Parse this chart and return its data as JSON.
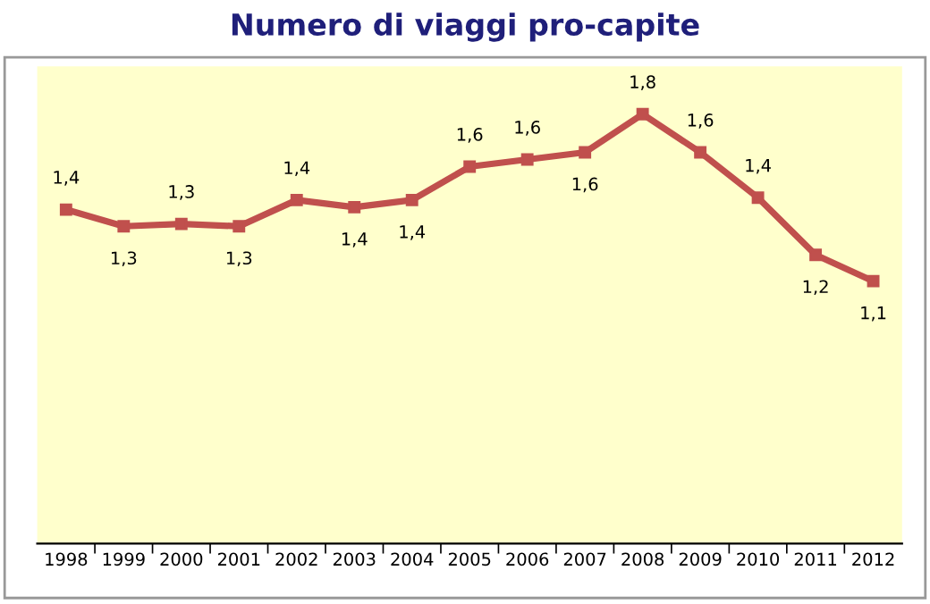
{
  "chart_data": {
    "type": "line",
    "title": "Numero di viaggi pro-capite",
    "categories": [
      "1998",
      "1999",
      "2000",
      "2001",
      "2002",
      "2003",
      "2004",
      "2005",
      "2006",
      "2007",
      "2008",
      "2009",
      "2010",
      "2011",
      "2012"
    ],
    "values": [
      1.4,
      1.33,
      1.34,
      1.33,
      1.44,
      1.41,
      1.44,
      1.58,
      1.61,
      1.64,
      1.8,
      1.64,
      1.45,
      1.21,
      1.1
    ],
    "value_labels": [
      "1,4",
      "1,3",
      "1,3",
      "1,3",
      "1,4",
      "1,4",
      "1,4",
      "1,6",
      "1,6",
      "1,6",
      "1,8",
      "1,6",
      "1,4",
      "1,2",
      "1,1"
    ],
    "color": "#c0504d",
    "marker": "square",
    "line_style": "solid",
    "ylim": [
      0,
      2
    ],
    "grid": false,
    "legend": false
  }
}
